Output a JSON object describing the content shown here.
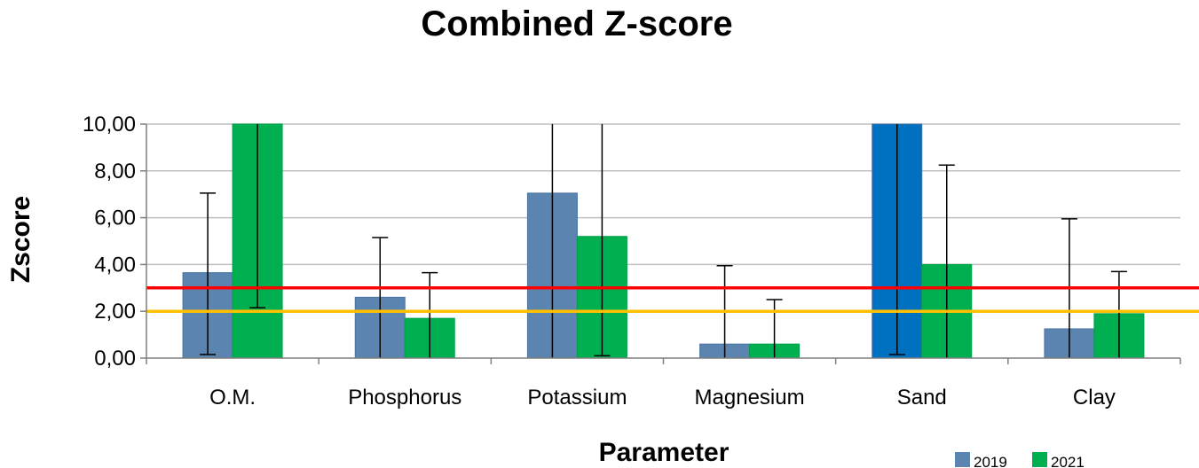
{
  "chart_data": {
    "type": "bar",
    "title": "Combined Z-score",
    "xlabel": "Parameter",
    "ylabel": "Zscore",
    "ylim": [
      0,
      10
    ],
    "yticks": [
      "0,00",
      "2,00",
      "4,00",
      "6,00",
      "8,00",
      "10,00"
    ],
    "categories": [
      "O.M.",
      "Phosphorus",
      "Potassium",
      "Magnesium",
      "Sand",
      "Clay"
    ],
    "series": [
      {
        "name": "2019",
        "color": "#5b84b1",
        "values": [
          3.65,
          2.6,
          7.05,
          0.6,
          10.0,
          1.25
        ],
        "error_low": [
          0.15,
          0.0,
          0.0,
          0.0,
          0.15,
          0.0
        ],
        "error_high": [
          7.05,
          5.15,
          10.0,
          3.95,
          10.0,
          5.95
        ],
        "highlight": [
          false,
          false,
          false,
          false,
          true,
          false
        ],
        "highlight_color": "#0070c0"
      },
      {
        "name": "2021",
        "color": "#00b050",
        "values": [
          10.0,
          1.7,
          5.2,
          0.6,
          4.0,
          1.9
        ],
        "error_low": [
          2.15,
          0.0,
          0.1,
          0.0,
          0.0,
          0.0
        ],
        "error_high": [
          10.0,
          3.65,
          10.0,
          2.5,
          8.25,
          3.7
        ]
      }
    ],
    "reference_lines": [
      {
        "value": 3,
        "color": "#ff0000"
      },
      {
        "value": 2,
        "color": "#ffc000"
      }
    ],
    "grid": true,
    "legend_position": "bottom-right"
  }
}
